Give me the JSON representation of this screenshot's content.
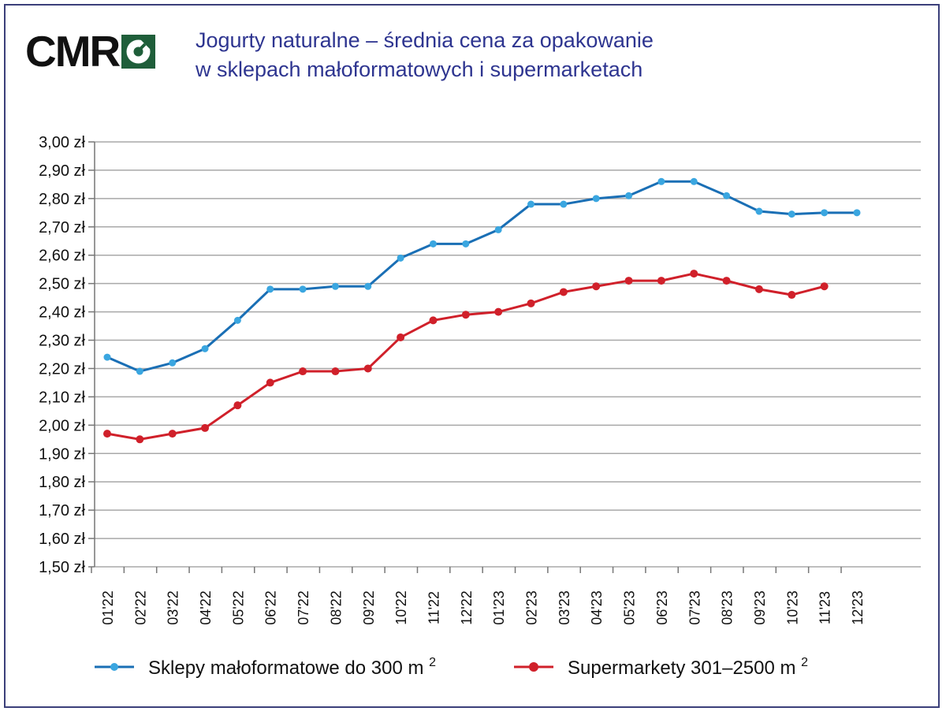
{
  "logo": {
    "text": "CMR"
  },
  "chart_data": {
    "type": "line",
    "title": "Jogurty naturalne – średnia cena za opakowanie w sklepach małoformatowych i supermarketach",
    "title_lines": [
      "Jogurty naturalne – średnia cena za opakowanie",
      "w sklepach małoformatowych i supermarketach"
    ],
    "xlabel": "",
    "ylabel": "",
    "ylim": [
      1.5,
      3.0
    ],
    "yticks": [
      1.5,
      1.6,
      1.7,
      1.8,
      1.9,
      2.0,
      2.1,
      2.2,
      2.3,
      2.4,
      2.5,
      2.6,
      2.7,
      2.8,
      2.9,
      3.0
    ],
    "ytick_labels": [
      "1,50 zł",
      "1,60 zł",
      "1,70 zł",
      "1,80 zł",
      "1,90 zł",
      "2,00 zł",
      "2,10 zł",
      "2,20 zł",
      "2,30 zł",
      "2,40 zł",
      "2,50 zł",
      "2,60 zł",
      "2,70 zł",
      "2,80 zł",
      "2,90 zł",
      "3,00 zł"
    ],
    "grid": true,
    "legend_position": "bottom",
    "categories": [
      "01'22",
      "02'22",
      "03'22",
      "04'22",
      "05'22",
      "06'22",
      "07'22",
      "08'22",
      "09'22",
      "10'22",
      "11'22",
      "12'22",
      "01'23",
      "02'23",
      "03'23",
      "04'23",
      "05'23",
      "06'23",
      "07'23",
      "08'23",
      "09'23",
      "10'23",
      "11'23",
      "12'23"
    ],
    "series": [
      {
        "name": "Sklepy małoformatowe do 300 m",
        "name_sup": "2",
        "color": "#1a6fb5",
        "marker_color": "#3aa6e0",
        "values": [
          2.24,
          2.19,
          2.22,
          2.27,
          2.37,
          2.48,
          2.48,
          2.49,
          2.49,
          2.59,
          2.64,
          2.64,
          2.69,
          2.78,
          2.78,
          2.8,
          2.81,
          2.86,
          2.86,
          2.81,
          2.755,
          2.745,
          2.75,
          2.75
        ]
      },
      {
        "name": "Supermarkety 301–2500 m",
        "name_sup": "2",
        "color": "#d0202a",
        "marker_color": "#d0202a",
        "values": [
          1.97,
          1.95,
          1.97,
          1.99,
          2.07,
          2.15,
          2.19,
          2.19,
          2.2,
          2.31,
          2.37,
          2.39,
          2.4,
          2.43,
          2.47,
          2.49,
          2.51,
          2.51,
          2.535,
          2.51,
          2.48,
          2.46,
          2.49,
          null
        ]
      }
    ]
  }
}
